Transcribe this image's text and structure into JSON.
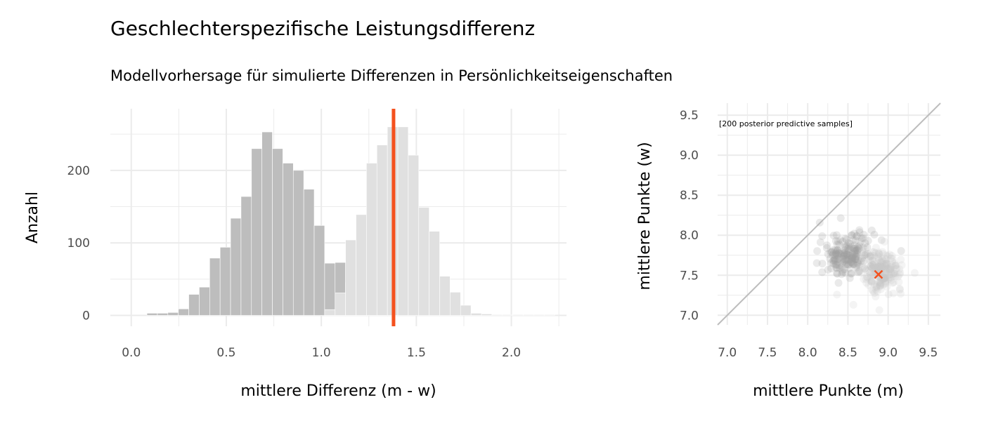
{
  "title": "Geschlechterspezifische Leistungsdifferenz",
  "subtitle": "Modellvorhersage für simulierte Differenzen in Persönlichkeitseigenschaften",
  "colors": {
    "dark_bars": "#bdbdbd",
    "light_bars": "#e0e0e0",
    "accent": "#f4511e",
    "grid": "#ebebeb",
    "diagonal": "#bdbdbd"
  },
  "chart_data": [
    {
      "type": "bar",
      "subtype": "histogram",
      "xlabel": "mittlere Differenz (m - w)",
      "ylabel": "Anzahl",
      "xlim": [
        -0.11,
        2.29
      ],
      "ylim": [
        -15,
        285
      ],
      "x_ticks": [
        0.0,
        0.5,
        1.0,
        1.5,
        2.0
      ],
      "x_tick_labels": [
        "0.0",
        "0.5",
        "1.0",
        "1.5",
        "2.0"
      ],
      "y_ticks": [
        0,
        100,
        200
      ],
      "bin_width": 0.055,
      "vline_x": 1.38,
      "series": [
        {
          "bin_centers": [
            0.11,
            0.165,
            0.22,
            0.275,
            0.33,
            0.385,
            0.44,
            0.495,
            0.55,
            0.605,
            0.66,
            0.715,
            0.77,
            0.825,
            0.88,
            0.935,
            0.99,
            1.045,
            1.1,
            1.155,
            1.21,
            1.265,
            1.32,
            1.375
          ],
          "values": [
            3,
            3,
            4,
            9,
            29,
            39,
            79,
            94,
            134,
            164,
            230,
            253,
            230,
            210,
            200,
            174,
            124,
            72,
            73,
            45,
            38,
            17,
            6,
            2
          ]
        },
        {
          "bin_centers": [
            1.045,
            1.1,
            1.155,
            1.21,
            1.265,
            1.32,
            1.375,
            1.43,
            1.485,
            1.54,
            1.595,
            1.65,
            1.705,
            1.76,
            1.815,
            1.87,
            1.925,
            1.98,
            2.035,
            2.09,
            2.145,
            2.2
          ],
          "values": [
            8,
            31,
            104,
            139,
            210,
            235,
            260,
            260,
            221,
            149,
            116,
            54,
            32,
            14,
            3,
            2,
            1,
            1,
            1,
            1,
            1,
            1
          ]
        }
      ]
    },
    {
      "type": "scatter",
      "xlabel": "mittlere Punkte (m)",
      "ylabel": "mittlere Punkte (w)",
      "xlim": [
        6.88,
        9.65
      ],
      "ylim": [
        6.88,
        9.65
      ],
      "x_ticks": [
        7.0,
        7.5,
        8.0,
        8.5,
        9.0,
        9.5
      ],
      "x_tick_labels": [
        "7.0",
        "7.5",
        "8.0",
        "8.5",
        "9.0",
        "9.5"
      ],
      "y_ticks": [
        7.0,
        7.5,
        8.0,
        8.5,
        9.0,
        9.5
      ],
      "y_tick_labels": [
        "7.0",
        "7.5",
        "8.0",
        "8.5",
        "9.0",
        "9.5"
      ],
      "annotation": "[200 posterior predictive samples]",
      "diagonal": true,
      "highlight_point": {
        "x": 8.88,
        "y": 7.51
      },
      "n_samples": 200
    }
  ]
}
